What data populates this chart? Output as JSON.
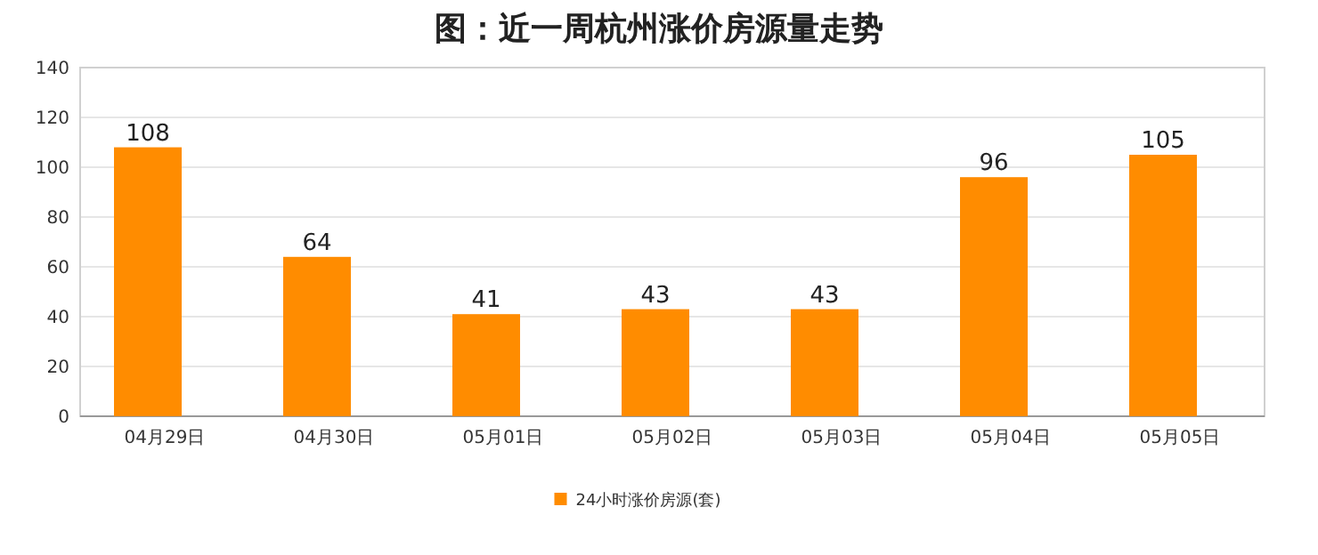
{
  "chart_data": {
    "type": "bar",
    "title": "图：近一周杭州涨价房源量走势",
    "categories": [
      "04月29日",
      "04月30日",
      "05月01日",
      "05月02日",
      "05月03日",
      "05月04日",
      "05月05日"
    ],
    "series": [
      {
        "name": "24小时涨价房源(套)",
        "color": "#ff8c00",
        "values": [
          108,
          64,
          41,
          43,
          43,
          96,
          105
        ]
      }
    ],
    "ylim": [
      0,
      140
    ],
    "yticks": [
      0,
      20,
      40,
      60,
      80,
      100,
      120,
      140
    ],
    "grid": "y",
    "legend": "bottom",
    "data_labels": true
  }
}
